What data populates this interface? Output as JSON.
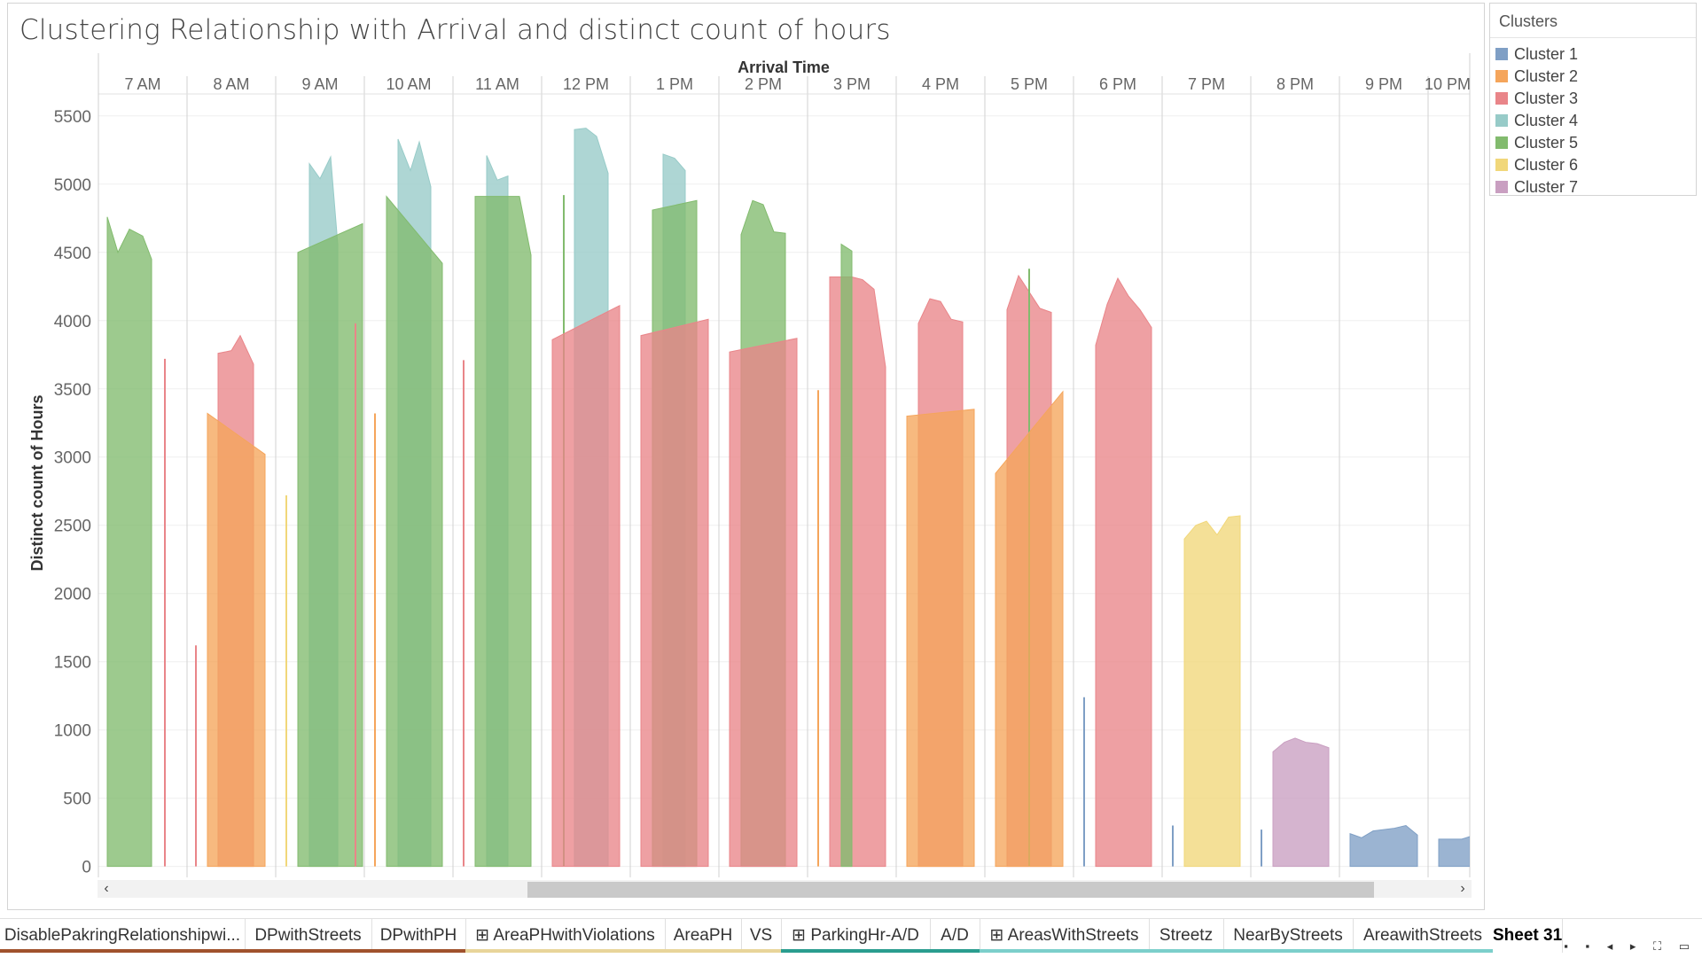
{
  "title": "Clustering Relationship with Arrival and distinct count of hours",
  "legend": {
    "title": "Clusters",
    "items": [
      {
        "label": "Cluster 1",
        "color": "#7f9fc5"
      },
      {
        "label": "Cluster 2",
        "color": "#f5a55b"
      },
      {
        "label": "Cluster 3",
        "color": "#e98589"
      },
      {
        "label": "Cluster 4",
        "color": "#97cbc8"
      },
      {
        "label": "Cluster 5",
        "color": "#82bb6e"
      },
      {
        "label": "Cluster 6",
        "color": "#f1d77a"
      },
      {
        "label": "Cluster 7",
        "color": "#c99fc1"
      }
    ]
  },
  "chart_data": {
    "type": "area",
    "xlabel": "Arrival Time",
    "ylabel": "Distinct count of Hours",
    "ylim": [
      -80,
      5700
    ],
    "yticks": [
      0,
      500,
      1000,
      1500,
      2000,
      2500,
      3000,
      3500,
      4000,
      4500,
      5000,
      5500
    ],
    "categories": [
      "7 AM",
      "8 AM",
      "9 AM",
      "10 AM",
      "11 AM",
      "12 PM",
      "1 PM",
      "2 PM",
      "3 PM",
      "4 PM",
      "5 PM",
      "6 PM",
      "7 PM",
      "8 PM",
      "9 PM",
      "10 PM"
    ],
    "grid": true,
    "legend_position": "right",
    "series": [
      {
        "name": "Cluster 5",
        "cluster": 5,
        "hour": "7 AM",
        "x": [
          0.1,
          0.22,
          0.35,
          0.5,
          0.6
        ],
        "y": [
          4760,
          4500,
          4670,
          4620,
          4450
        ]
      },
      {
        "name": "Cluster 3",
        "cluster": 3,
        "hour": "7 AM",
        "x": [
          0.75
        ],
        "y": [
          3720
        ],
        "line": true
      },
      {
        "name": "Cluster 3",
        "cluster": 3,
        "hour": "8 AM",
        "x": [
          0.1
        ],
        "y": [
          1620
        ],
        "line": true
      },
      {
        "name": "Cluster 3",
        "cluster": 3,
        "hour": "8 AM",
        "x": [
          0.35,
          0.5,
          0.6,
          0.75
        ],
        "y": [
          3760,
          3780,
          3890,
          3680
        ]
      },
      {
        "name": "Cluster 2",
        "cluster": 2,
        "hour": "8 AM",
        "x": [
          0.23,
          0.88
        ],
        "y": [
          3320,
          3020
        ]
      },
      {
        "name": "Cluster 6",
        "cluster": 6,
        "hour": "9 AM",
        "x": [
          0.12
        ],
        "y": [
          2720
        ],
        "line": true
      },
      {
        "name": "Cluster 4",
        "cluster": 4,
        "hour": "9 AM",
        "x": [
          0.38,
          0.5,
          0.62,
          0.7
        ],
        "y": [
          5150,
          5040,
          5200,
          4560
        ]
      },
      {
        "name": "Cluster 5",
        "cluster": 5,
        "hour": "9 AM",
        "x": [
          0.25,
          0.98
        ],
        "y": [
          4500,
          4710
        ]
      },
      {
        "name": "Cluster 3",
        "cluster": 3,
        "hour": "9 AM",
        "x": [
          0.9
        ],
        "y": [
          3980
        ],
        "line": true
      },
      {
        "name": "Cluster 2",
        "cluster": 2,
        "hour": "10 AM",
        "x": [
          0.12
        ],
        "y": [
          3320
        ],
        "line": true
      },
      {
        "name": "Cluster 4",
        "cluster": 4,
        "hour": "10 AM",
        "x": [
          0.38,
          0.52,
          0.62,
          0.75
        ],
        "y": [
          5330,
          5100,
          5310,
          4980
        ]
      },
      {
        "name": "Cluster 5",
        "cluster": 5,
        "hour": "10 AM",
        "x": [
          0.25,
          0.88
        ],
        "y": [
          4910,
          4420
        ]
      },
      {
        "name": "Cluster 3",
        "cluster": 3,
        "hour": "11 AM",
        "x": [
          0.12
        ],
        "y": [
          3710
        ],
        "line": true
      },
      {
        "name": "Cluster 4",
        "cluster": 4,
        "hour": "11 AM",
        "x": [
          0.38,
          0.5,
          0.62
        ],
        "y": [
          5210,
          5030,
          5060
        ]
      },
      {
        "name": "Cluster 5",
        "cluster": 5,
        "hour": "11 AM",
        "x": [
          0.25,
          0.75,
          0.88
        ],
        "y": [
          4910,
          4910,
          4480
        ]
      },
      {
        "name": "Cluster 5",
        "cluster": 5,
        "hour": "12 PM",
        "x": [
          0.25
        ],
        "y": [
          4920
        ],
        "line": true
      },
      {
        "name": "Cluster 4",
        "cluster": 4,
        "hour": "12 PM",
        "x": [
          0.37,
          0.5,
          0.62,
          0.75
        ],
        "y": [
          5400,
          5410,
          5350,
          5080
        ]
      },
      {
        "name": "Cluster 3",
        "cluster": 3,
        "hour": "12 PM",
        "x": [
          0.12,
          0.88
        ],
        "y": [
          3860,
          4110
        ]
      },
      {
        "name": "Cluster 4",
        "cluster": 4,
        "hour": "1 PM",
        "x": [
          0.37,
          0.5,
          0.62
        ],
        "y": [
          5220,
          5190,
          5100
        ]
      },
      {
        "name": "Cluster 5",
        "cluster": 5,
        "hour": "1 PM",
        "x": [
          0.25,
          0.75
        ],
        "y": [
          4810,
          4880
        ]
      },
      {
        "name": "Cluster 3",
        "cluster": 3,
        "hour": "1 PM",
        "x": [
          0.12,
          0.88
        ],
        "y": [
          3890,
          4010
        ]
      },
      {
        "name": "Cluster 5",
        "cluster": 5,
        "hour": "2 PM",
        "x": [
          0.25,
          0.38,
          0.5,
          0.62,
          0.75
        ],
        "y": [
          4630,
          4880,
          4850,
          4650,
          4640
        ]
      },
      {
        "name": "Cluster 3",
        "cluster": 3,
        "hour": "2 PM",
        "x": [
          0.12,
          0.88
        ],
        "y": [
          3770,
          3870
        ]
      },
      {
        "name": "Cluster 2",
        "cluster": 2,
        "hour": "3 PM",
        "x": [
          0.12
        ],
        "y": [
          3490
        ],
        "line": true
      },
      {
        "name": "Cluster 3",
        "cluster": 3,
        "hour": "3 PM",
        "x": [
          0.25,
          0.5,
          0.62,
          0.75,
          0.88
        ],
        "y": [
          4320,
          4320,
          4300,
          4230,
          3660
        ]
      },
      {
        "name": "Cluster 5",
        "cluster": 5,
        "hour": "3 PM",
        "x": [
          0.38,
          0.5
        ],
        "y": [
          4560,
          4510
        ]
      },
      {
        "name": "Cluster 3",
        "cluster": 3,
        "hour": "4 PM",
        "x": [
          0.25,
          0.38,
          0.5,
          0.62,
          0.75
        ],
        "y": [
          3980,
          4160,
          4140,
          4010,
          3990
        ]
      },
      {
        "name": "Cluster 2",
        "cluster": 2,
        "hour": "4 PM",
        "x": [
          0.12,
          0.88
        ],
        "y": [
          3300,
          3350
        ]
      },
      {
        "name": "Cluster 3",
        "cluster": 3,
        "hour": "5 PM",
        "x": [
          0.25,
          0.38,
          0.5,
          0.62,
          0.75
        ],
        "y": [
          4080,
          4330,
          4210,
          4090,
          4060
        ]
      },
      {
        "name": "Cluster 5",
        "cluster": 5,
        "hour": "5 PM",
        "x": [
          0.5
        ],
        "y": [
          4380
        ],
        "line": true
      },
      {
        "name": "Cluster 2",
        "cluster": 2,
        "hour": "5 PM",
        "x": [
          0.12,
          0.88
        ],
        "y": [
          2880,
          3480
        ]
      },
      {
        "name": "Cluster 1",
        "cluster": 1,
        "hour": "6 PM",
        "x": [
          0.12
        ],
        "y": [
          1240
        ],
        "line": true
      },
      {
        "name": "Cluster 3",
        "cluster": 3,
        "hour": "6 PM",
        "x": [
          0.25,
          0.38,
          0.5,
          0.62,
          0.75,
          0.88
        ],
        "y": [
          3820,
          4120,
          4310,
          4180,
          4080,
          3950
        ]
      },
      {
        "name": "Cluster 1",
        "cluster": 1,
        "hour": "7 PM",
        "x": [
          0.12
        ],
        "y": [
          300
        ],
        "line": true
      },
      {
        "name": "Cluster 6",
        "cluster": 6,
        "hour": "7 PM",
        "x": [
          0.25,
          0.38,
          0.5,
          0.62,
          0.75,
          0.88
        ],
        "y": [
          2400,
          2500,
          2530,
          2430,
          2560,
          2570
        ]
      },
      {
        "name": "Cluster 1",
        "cluster": 1,
        "hour": "8 PM",
        "x": [
          0.12
        ],
        "y": [
          270
        ],
        "line": true
      },
      {
        "name": "Cluster 7",
        "cluster": 7,
        "hour": "8 PM",
        "x": [
          0.25,
          0.38,
          0.5,
          0.62,
          0.75,
          0.88
        ],
        "y": [
          840,
          910,
          940,
          910,
          900,
          870
        ]
      },
      {
        "name": "Cluster 1",
        "cluster": 1,
        "hour": "9 PM",
        "x": [
          0.12,
          0.25,
          0.38,
          0.62,
          0.75,
          0.88
        ],
        "y": [
          240,
          210,
          260,
          280,
          300,
          230
        ]
      },
      {
        "name": "Cluster 1",
        "cluster": 1,
        "hour": "10 PM",
        "x": [
          0.12,
          0.38,
          0.62,
          0.75,
          0.88
        ],
        "y": [
          200,
          200,
          250,
          260,
          240
        ]
      }
    ]
  },
  "tabs": [
    {
      "label": "DisablePakringRelationshipwi...",
      "bar": "#a0522d"
    },
    {
      "label": "DPwithStreets",
      "bar": "#a0522d"
    },
    {
      "label": "DPwithPH",
      "bar": "#a0522d"
    },
    {
      "label": "⊞ AreaPHwithViolations",
      "bar": "#e8d59a"
    },
    {
      "label": "AreaPH",
      "bar": "#e8d59a"
    },
    {
      "label": "VS",
      "bar": "#e8d59a"
    },
    {
      "label": "⊞ ParkingHr-A/D",
      "bar": "#2a9d8f"
    },
    {
      "label": "A/D",
      "bar": "#2a9d8f"
    },
    {
      "label": "⊞ AreasWithStreets",
      "bar": "#7ccfcb"
    },
    {
      "label": "Streetz",
      "bar": "#7ccfcb"
    },
    {
      "label": "NearByStreets",
      "bar": "#7ccfcb"
    },
    {
      "label": "AreawithStreets",
      "bar": "#7ccfcb"
    },
    {
      "label": "Sheet 31",
      "bar": "",
      "active": true
    }
  ],
  "scroll": {
    "left": "‹",
    "right": "›"
  },
  "controls": "▪ ▪ ◂ ▸ ⛶ ▭"
}
